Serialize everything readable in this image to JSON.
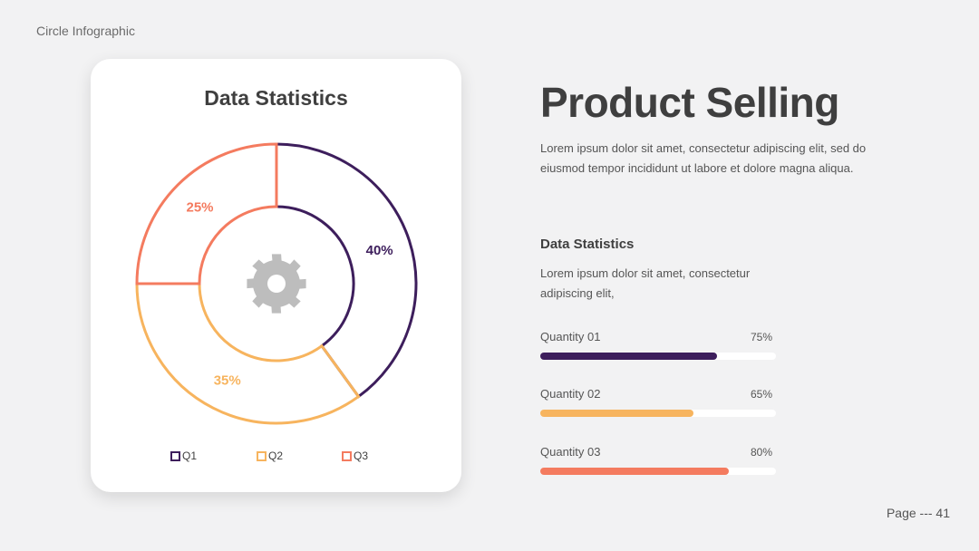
{
  "slide_label": "Circle Infographic",
  "page_number": "Page --- 41",
  "main": {
    "title": "Product Selling",
    "description": "Lorem ipsum dolor sit amet, consectetur adipiscing elit, sed do eiusmod tempor incididunt ut labore et dolore magna aliqua."
  },
  "stats": {
    "title": "Data Statistics",
    "description": "Lorem ipsum dolor sit amet, consectetur adipiscing elit,",
    "items": [
      {
        "label": "Quantity 01",
        "percent_label": "75%",
        "value": 0.75,
        "color": "#3d1e5c"
      },
      {
        "label": "Quantity 02",
        "percent_label": "65%",
        "value": 0.65,
        "color": "#f7b45e"
      },
      {
        "label": "Quantity 03",
        "percent_label": "80%",
        "value": 0.8,
        "color": "#f47b5f"
      }
    ]
  },
  "chart_data": {
    "type": "pie",
    "title": "Data Statistics",
    "categories": [
      "Q1",
      "Q2",
      "Q3"
    ],
    "values": [
      40,
      35,
      25
    ],
    "labels": [
      "40%",
      "35%",
      "25%"
    ],
    "colors": [
      "#3d1e5c",
      "#f7b45e",
      "#f47b5f"
    ],
    "center_icon": "gear-icon",
    "legend_position": "bottom"
  }
}
